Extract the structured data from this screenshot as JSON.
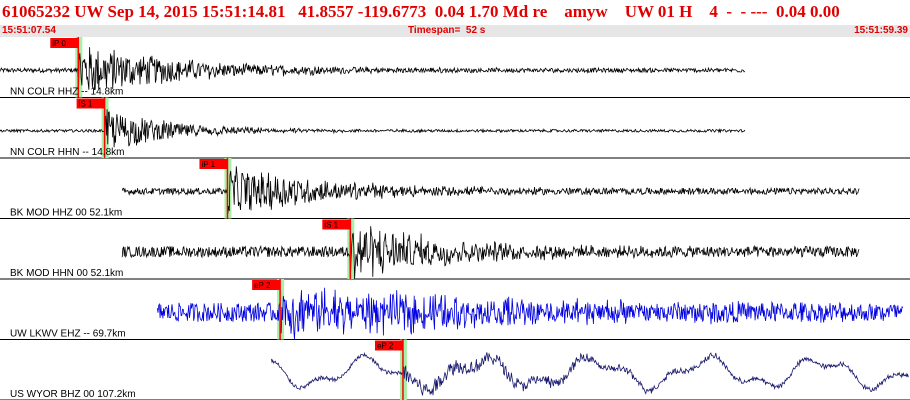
{
  "header": {
    "title": "61065232 UW Sep 14, 2015 15:51:14.81   41.8557 -119.6773  0.04 1.70 Md re    amyw    UW 01 H    4  -  - ---  0.04 0.00",
    "start_time": "15:51:07.54",
    "timespan": "Timespan=  52 s",
    "end_time": "15:51:59.39"
  },
  "colors": {
    "title": "#e00000",
    "pick_box": "#ff0000",
    "pick_window": "#a8f0a8",
    "trace_default": "#000000",
    "trace_lkwv": "#0000e0",
    "trace_wyor": "#1a1a6e",
    "synthetic_line": "#cc0000",
    "panel_border": "#000000"
  },
  "panels": [
    {
      "label": "NN COLR HHZ -- 14.8km",
      "trace_color": "#000000",
      "pick": {
        "label": "iP 0",
        "time": "15:51:12.0"
      },
      "signal": {
        "start_time": "15:51:07.5",
        "end_time": "15:51:50.0",
        "onset": "15:51:12.0",
        "noise": 0.08,
        "peak": 1.0,
        "decay_s": 6
      }
    },
    {
      "label": "NN COLR HHN -- 14.8km",
      "trace_color": "#000000",
      "pick": {
        "label": "iS 1",
        "time": "15:51:13.5"
      },
      "signal": {
        "start_time": "15:51:07.5",
        "end_time": "15:51:50.0",
        "onset": "15:51:13.5",
        "noise": 0.05,
        "peak": 0.8,
        "decay_s": 4
      }
    },
    {
      "label": "BK MOD HHZ 00 52.1km",
      "trace_color": "#000000",
      "pick": {
        "label": "iP 1",
        "time": "15:51:20.5"
      },
      "signal": {
        "start_time": "15:51:14.5",
        "end_time": "15:51:56.5",
        "onset": "15:51:20.5",
        "noise": 0.12,
        "peak": 0.9,
        "decay_s": 6
      }
    },
    {
      "label": "BK MOD HHN 00 52.1km",
      "trace_color": "#000000",
      "pick": {
        "label": "iS 1",
        "time": "15:51:27.5"
      },
      "signal": {
        "start_time": "15:51:14.5",
        "end_time": "15:51:56.5",
        "onset": "15:51:27.5",
        "noise": 0.2,
        "peak": 1.1,
        "decay_s": 5
      }
    },
    {
      "label": "UW LKWV EHZ -- 69.7km",
      "trace_color": "#0000e0",
      "pick": {
        "label": "eP 2",
        "time": "15:51:23.5"
      },
      "signal": {
        "start_time": "15:51:16.5",
        "end_time": "15:51:59.0",
        "onset": "15:51:23.5",
        "noise": 0.35,
        "peak": 0.9,
        "decay_s": 12
      }
    },
    {
      "label": "US WYOR BHZ 00 107.2km",
      "trace_color": "#1a1a6e",
      "pick": {
        "label": "eP 2",
        "time": "15:51:30.5"
      },
      "signal": {
        "start_time": "15:51:23.0",
        "end_time": "15:51:59.3",
        "onset": "15:51:30.5",
        "noise": 0.5,
        "peak": 0.7,
        "decay_s": 10,
        "long_period": true
      }
    }
  ]
}
